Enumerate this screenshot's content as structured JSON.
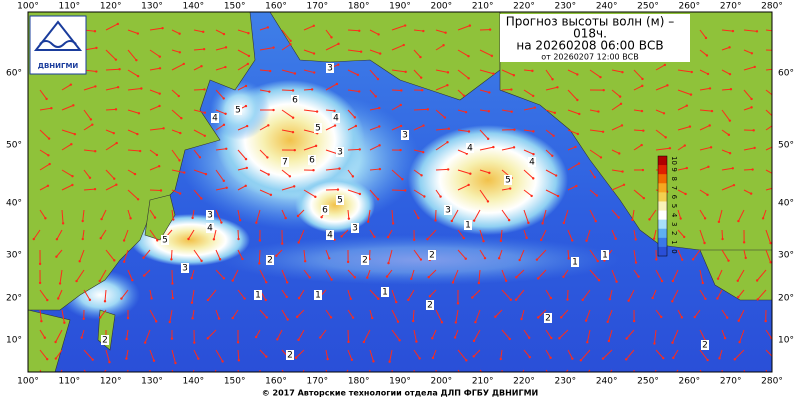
{
  "header": {
    "title": "Прогноз высоты волн (м) –",
    "lead": "018ч.",
    "valid": "на 20260208 06:00 ВСВ",
    "issued": "от 20260207 12:00 ВСВ"
  },
  "logo": "ДВНИГМИ",
  "longitude_labels": [
    "100°",
    "110°",
    "120°",
    "130°",
    "140°",
    "150°",
    "160°",
    "170°",
    "180°",
    "190°",
    "200°",
    "210°",
    "220°",
    "230°",
    "240°",
    "250°",
    "260°",
    "270°",
    "280°"
  ],
  "latitude_labels": [
    "60°",
    "50°",
    "40°",
    "30°",
    "20°",
    "10°"
  ],
  "colorbar_labels": [
    "10",
    "9",
    "8",
    "7",
    "6",
    "5",
    "4",
    "3",
    "2",
    "1",
    "0"
  ],
  "contour_labels": [
    "3",
    "4",
    "5",
    "6",
    "7",
    "6",
    "5",
    "4",
    "3",
    "6",
    "5",
    "4",
    "3",
    "3",
    "4",
    "5",
    "4",
    "3",
    "5",
    "4",
    "3",
    "2",
    "2",
    "1",
    "1",
    "2",
    "1",
    "2",
    "1",
    "2",
    "3",
    "2",
    "1",
    "1",
    "2",
    "2"
  ],
  "footer": "© 2017 Авторские технологии отдела ДЛП ФГБУ ДВНИГМИ"
}
